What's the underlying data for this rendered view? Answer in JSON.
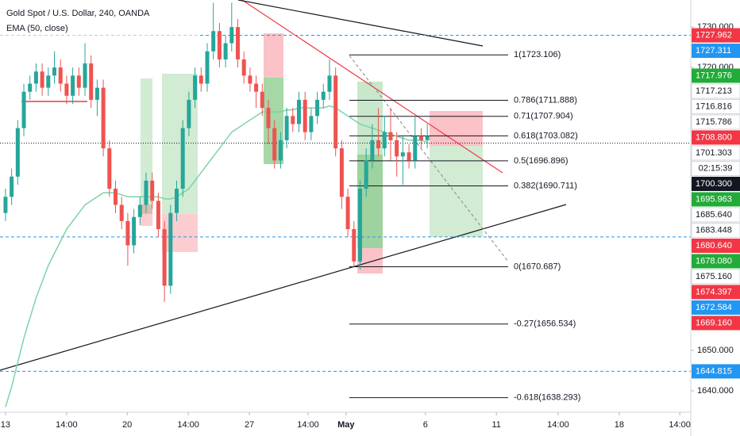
{
  "chart_data": {
    "type": "candlestick",
    "title": "Gold Spot / U.S. Dollar, 240, OANDA",
    "indicator_label": "EMA (50, close)",
    "xlim": [
      -0.9,
      112.1
    ],
    "ylim": [
      1634.7,
      1736.7
    ],
    "xticks": [
      {
        "value": 0,
        "label": "13"
      },
      {
        "value": 10,
        "label": "14:00"
      },
      {
        "value": 19.9,
        "label": "20"
      },
      {
        "value": 29.9,
        "label": "14:00"
      },
      {
        "value": 39.9,
        "label": "27"
      },
      {
        "value": 49.5,
        "label": "14:00"
      },
      {
        "value": 55.7,
        "label": "May"
      },
      {
        "value": 68.7,
        "label": "6"
      },
      {
        "value": 80.3,
        "label": "11"
      },
      {
        "value": 90.4,
        "label": "14:00"
      },
      {
        "value": 100.4,
        "label": "18"
      },
      {
        "value": 110.3,
        "label": "14:00"
      }
    ],
    "yticks": [
      {
        "value": 1730,
        "label": "1730.000"
      },
      {
        "value": 1720,
        "label": "1720.000"
      },
      {
        "value": 1650,
        "label": "1650.000"
      },
      {
        "value": 1640,
        "label": "1640.000"
      }
    ],
    "up_color": "#26a69a",
    "down_color": "#ef5350",
    "open": [
      1684,
      1688,
      1693,
      1705,
      1714,
      1716,
      1719,
      1715,
      1718,
      1720,
      1716,
      1713,
      1718,
      1715,
      1721,
      1712,
      1715,
      1700,
      1690,
      1686,
      1682,
      1676,
      1683,
      1686,
      1692,
      1687,
      1680,
      1666,
      1684,
      1690,
      1705,
      1712,
      1718,
      1716,
      1724,
      1729,
      1722,
      1726,
      1730,
      1722,
      1718,
      1716,
      1714,
      1710,
      1705,
      1697,
      1702,
      1708,
      1706,
      1712,
      1704,
      1708,
      1712,
      1714,
      1718,
      1700,
      1688,
      1680,
      1672,
      1690,
      1697,
      1702,
      1700,
      1704,
      1702,
      1698,
      1699,
      1697,
      1703,
      1702
    ],
    "high": [
      1690,
      1695,
      1707,
      1716,
      1718,
      1721,
      1721,
      1720,
      1724,
      1722,
      1718,
      1720,
      1720,
      1726,
      1723,
      1717,
      1717,
      1702,
      1692,
      1688,
      1684,
      1685,
      1688,
      1694,
      1694,
      1689,
      1682,
      1686,
      1692,
      1707,
      1714,
      1720,
      1720,
      1726,
      1736,
      1731,
      1728,
      1736,
      1732,
      1724,
      1720,
      1718,
      1716,
      1712,
      1707,
      1704,
      1710,
      1710,
      1714,
      1714,
      1710,
      1714,
      1716,
      1722,
      1720,
      1702,
      1690,
      1682,
      1692,
      1700,
      1706,
      1710,
      1708,
      1710,
      1704,
      1703,
      1701,
      1708,
      1705,
      1706
    ],
    "low": [
      1682,
      1686,
      1691,
      1703,
      1712,
      1714,
      1713,
      1713,
      1716,
      1714,
      1711,
      1711,
      1713,
      1713,
      1710,
      1708,
      1698,
      1688,
      1684,
      1680,
      1671,
      1674,
      1681,
      1684,
      1685,
      1678,
      1662,
      1664,
      1682,
      1688,
      1703,
      1710,
      1714,
      1714,
      1722,
      1720,
      1720,
      1724,
      1720,
      1716,
      1714,
      1710,
      1708,
      1701,
      1695,
      1695,
      1700,
      1704,
      1704,
      1702,
      1702,
      1706,
      1710,
      1712,
      1698,
      1685,
      1678,
      1670.7,
      1670,
      1688,
      1695,
      1698,
      1698,
      1697,
      1693,
      1691,
      1695,
      1695,
      1700,
      1700
    ],
    "close": [
      1688,
      1693,
      1705,
      1714,
      1716,
      1719,
      1715,
      1718,
      1720,
      1716,
      1713,
      1718,
      1715,
      1721,
      1712,
      1715,
      1700,
      1690,
      1686,
      1682,
      1676,
      1683,
      1686,
      1692,
      1687,
      1680,
      1666,
      1684,
      1690,
      1705,
      1712,
      1718,
      1716,
      1724,
      1729,
      1722,
      1726,
      1730,
      1722,
      1718,
      1716,
      1714,
      1710,
      1705,
      1697,
      1702,
      1708,
      1706,
      1712,
      1704,
      1708,
      1712,
      1714,
      1718,
      1700,
      1688,
      1680,
      1672,
      1690,
      1697,
      1702,
      1700,
      1704,
      1702,
      1698,
      1699,
      1697,
      1703,
      1702,
      1703
    ],
    "ema": {
      "color": "#7dd3a8",
      "values": [
        1636,
        1641,
        1647,
        1653,
        1658,
        1663,
        1667,
        1671,
        1674,
        1677,
        1680,
        1682,
        1684,
        1686,
        1687,
        1688,
        1689,
        1689,
        1689,
        1688.5,
        1688,
        1688,
        1688,
        1688,
        1688,
        1688,
        1687.5,
        1687.5,
        1688,
        1689,
        1690,
        1692,
        1694,
        1696,
        1698,
        1700,
        1702,
        1704,
        1705,
        1706,
        1707,
        1708,
        1709,
        1709,
        1709,
        1709,
        1709.5,
        1709.5,
        1710,
        1710,
        1710,
        1710,
        1710,
        1710.5,
        1710,
        1709,
        1708,
        1707,
        1706,
        1705.5,
        1705,
        1704.5,
        1704,
        1703.5,
        1703,
        1702.5,
        1702,
        1702,
        1702,
        1701.5
      ]
    },
    "fib_levels": [
      {
        "value": 1723.106,
        "label": "1(1723.106)"
      },
      {
        "value": 1711.888,
        "label": "0.786(1711.888)"
      },
      {
        "value": 1707.904,
        "label": "0.71(1707.904)"
      },
      {
        "value": 1703.082,
        "label": "0.618(1703.082)"
      },
      {
        "value": 1696.896,
        "label": "0.5(1696.896)"
      },
      {
        "value": 1690.711,
        "label": "0.382(1690.711)"
      },
      {
        "value": 1670.687,
        "label": "0(1670.687)"
      },
      {
        "value": 1656.534,
        "label": "-0.27(1656.534)"
      },
      {
        "value": 1638.293,
        "label": "-0.618(1638.293)"
      }
    ],
    "hlines": [
      1727.962,
      1678.08,
      1644.815
    ],
    "last_price": 1701.303,
    "countdown": "02:15:39",
    "price_tags": [
      {
        "value": 1727.962,
        "label": "1727.962",
        "color": "#f23645"
      },
      {
        "value": 1727.311,
        "label": "1727.311",
        "color": "#2196f3"
      },
      {
        "value": 1717.976,
        "label": "1717.976",
        "color": "#22ab39"
      },
      {
        "value": 1717.213,
        "label": "1717.213",
        "color": "#ffffff"
      },
      {
        "value": 1716.816,
        "label": "1716.816",
        "color": "#ffffff"
      },
      {
        "value": 1715.786,
        "label": "1715.786",
        "color": "#ffffff"
      },
      {
        "value": 1708.8,
        "label": "1708.800",
        "color": "#f23645"
      },
      {
        "value": 1701.303,
        "label": "1701.303",
        "color": "#ffffff"
      },
      {
        "value": 1700.3,
        "label": "1700.300",
        "color": "#131722"
      },
      {
        "value": 1695.963,
        "label": "1695.963",
        "color": "#22ab39"
      },
      {
        "value": 1685.64,
        "label": "1685.640",
        "color": "#ffffff"
      },
      {
        "value": 1683.448,
        "label": "1683.448",
        "color": "#ffffff"
      },
      {
        "value": 1680.64,
        "label": "1680.640",
        "color": "#f23645"
      },
      {
        "value": 1678.08,
        "label": "1678.080",
        "color": "#22ab39"
      },
      {
        "value": 1675.16,
        "label": "1675.160",
        "color": "#ffffff"
      },
      {
        "value": 1674.397,
        "label": "1674.397",
        "color": "#f23645"
      },
      {
        "value": 1672.584,
        "label": "1672.584",
        "color": "#2196f3"
      },
      {
        "value": 1669.16,
        "label": "1669.160",
        "color": "#f23645"
      },
      {
        "value": 1644.815,
        "label": "1644.815",
        "color": "#2196f3"
      }
    ]
  }
}
